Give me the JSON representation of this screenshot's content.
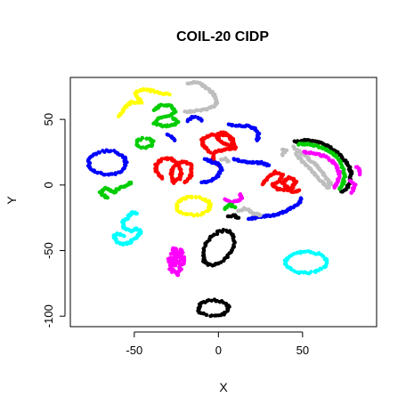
{
  "chart_data": {
    "type": "scatter",
    "title": "COIL-20 CIDP",
    "xlabel": "X",
    "ylabel": "Y",
    "xlim": [
      -88,
      94
    ],
    "ylim": [
      -108,
      82
    ],
    "xticks": [
      -50,
      0,
      50
    ],
    "yticks": [
      -100,
      -50,
      0,
      50
    ],
    "xtick_labels": [
      "-50",
      "0",
      "50"
    ],
    "ytick_labels": [
      "-100",
      "-50",
      "0",
      "50"
    ],
    "grid": false,
    "legend": "none",
    "clusters": [
      {
        "color": "#0000FF",
        "shape": "ring",
        "center": [
          -66,
          17
        ],
        "radii": [
          11,
          9
        ],
        "tilt": 0
      },
      {
        "color": "#FFFF00",
        "shape": "path",
        "points": [
          [
            -59,
            52
          ],
          [
            -56,
            59
          ],
          [
            -52,
            63
          ],
          [
            -46,
            63
          ],
          [
            -50,
            70
          ],
          [
            -45,
            73
          ],
          [
            -40,
            72
          ],
          [
            -34,
            70
          ],
          [
            -29,
            69
          ]
        ]
      },
      {
        "color": "#BEBEBE",
        "shape": "path",
        "points": [
          [
            -18,
            77
          ],
          [
            -14,
            79
          ],
          [
            -10,
            77
          ],
          [
            -7,
            74
          ],
          [
            -4,
            71
          ],
          [
            -2,
            67
          ],
          [
            -1,
            62
          ],
          [
            -3,
            60
          ],
          [
            -7,
            58
          ],
          [
            -11,
            57
          ],
          [
            -16,
            56
          ],
          [
            -20,
            56
          ]
        ]
      },
      {
        "color": "#00CD00",
        "shape": "path",
        "points": [
          [
            -38,
            57
          ],
          [
            -34,
            61
          ],
          [
            -29,
            61
          ],
          [
            -26,
            56
          ],
          [
            -29,
            53
          ],
          [
            -35,
            51
          ],
          [
            -38,
            47
          ],
          [
            -34,
            45
          ],
          [
            -28,
            45
          ],
          [
            -24,
            48
          ],
          [
            -27,
            51
          ]
        ]
      },
      {
        "color": "#0000FF",
        "shape": "path",
        "points": [
          [
            -18,
            49
          ],
          [
            -15,
            52
          ],
          [
            -12,
            51
          ],
          [
            -10,
            49
          ]
        ]
      },
      {
        "color": "#0000FF",
        "shape": "path",
        "points": [
          [
            -30,
            38
          ],
          [
            -28,
            37
          ],
          [
            -26,
            34
          ]
        ]
      },
      {
        "color": "#00CD00",
        "shape": "ring",
        "center": [
          -44,
          32
        ],
        "radii": [
          5,
          3.5
        ],
        "tilt": 0
      },
      {
        "color": "#0000FF",
        "shape": "path",
        "points": [
          [
            6,
            46
          ],
          [
            12,
            45
          ],
          [
            18,
            45
          ],
          [
            22,
            43
          ],
          [
            24,
            39
          ],
          [
            23,
            34
          ]
        ]
      },
      {
        "color": "#FF0000",
        "shape": "path",
        "points": [
          [
            -33,
            5
          ],
          [
            -37,
            10
          ],
          [
            -37,
            16
          ],
          [
            -33,
            20
          ],
          [
            -28,
            20
          ],
          [
            -24,
            16
          ],
          [
            -22,
            10
          ],
          [
            -23,
            5
          ],
          [
            -27,
            2
          ],
          [
            -28,
            10
          ],
          [
            -26,
            15
          ],
          [
            -20,
            18
          ],
          [
            -16,
            15
          ],
          [
            -16,
            8
          ],
          [
            -18,
            4
          ],
          [
            -20,
            2
          ]
        ]
      },
      {
        "color": "#FF0000",
        "shape": "path",
        "points": [
          [
            -5,
            25
          ],
          [
            -9,
            30
          ],
          [
            -10,
            35
          ],
          [
            -5,
            38
          ],
          [
            0,
            39
          ],
          [
            5,
            38
          ],
          [
            9,
            34
          ],
          [
            7,
            30
          ],
          [
            2,
            32
          ],
          [
            -1,
            36
          ],
          [
            2,
            40
          ],
          [
            6,
            38
          ],
          [
            9,
            32
          ],
          [
            10,
            28
          ],
          [
            5,
            27
          ],
          [
            0,
            26
          ],
          [
            -3,
            24
          ],
          [
            -3,
            18
          ],
          [
            0,
            15
          ]
        ]
      },
      {
        "color": "#BEBEBE",
        "shape": "path",
        "points": [
          [
            2,
            19
          ],
          [
            4,
            20
          ],
          [
            6,
            18
          ]
        ]
      },
      {
        "color": "#0000FF",
        "shape": "path",
        "points": [
          [
            -8,
            20
          ],
          [
            -5,
            18
          ],
          [
            0,
            16
          ],
          [
            2,
            12
          ],
          [
            0,
            7
          ],
          [
            -5,
            3
          ],
          [
            -10,
            2
          ]
        ]
      },
      {
        "color": "#0000FF",
        "shape": "path",
        "points": [
          [
            9,
            20
          ],
          [
            14,
            18
          ],
          [
            20,
            17
          ],
          [
            26,
            17
          ],
          [
            30,
            15
          ]
        ]
      },
      {
        "color": "#00CD00",
        "shape": "path",
        "points": [
          [
            -66,
            -10
          ],
          [
            -70,
            -6
          ],
          [
            -67,
            -2
          ],
          [
            -62,
            -6
          ],
          [
            -60,
            -3
          ],
          [
            -56,
            -1
          ],
          [
            -52,
            2
          ]
        ]
      },
      {
        "color": "#FFFF00",
        "shape": "ring",
        "center": [
          -15,
          -16
        ],
        "radii": [
          10,
          7
        ],
        "tilt": 0
      },
      {
        "color": "#0000FF",
        "shape": "path",
        "points": [
          [
            18,
            -26
          ],
          [
            26,
            -24
          ],
          [
            34,
            -23
          ],
          [
            40,
            -20
          ],
          [
            44,
            -17
          ],
          [
            48,
            -14
          ],
          [
            49,
            -10
          ]
        ]
      },
      {
        "color": "#FF0000",
        "shape": "path",
        "points": [
          [
            26,
            1
          ],
          [
            30,
            6
          ],
          [
            34,
            10
          ],
          [
            38,
            8
          ],
          [
            36,
            3
          ],
          [
            32,
            0
          ],
          [
            35,
            -3
          ],
          [
            40,
            -4
          ],
          [
            44,
            -2
          ],
          [
            46,
            3
          ],
          [
            42,
            6
          ],
          [
            38,
            2
          ],
          [
            44,
            -6
          ],
          [
            48,
            -4
          ]
        ]
      },
      {
        "color": "#BEBEBE",
        "shape": "path",
        "points": [
          [
            38,
            23
          ],
          [
            40,
            26
          ],
          [
            38,
            27
          ]
        ]
      },
      {
        "color": "#FF00FF",
        "shape": "path",
        "points": [
          [
            4,
            -11
          ],
          [
            8,
            -13
          ],
          [
            12,
            -12
          ],
          [
            14,
            -9
          ],
          [
            13,
            -7
          ]
        ]
      },
      {
        "color": "#BEBEBE",
        "shape": "path",
        "points": [
          [
            12,
            -20
          ],
          [
            15,
            -18
          ],
          [
            18,
            -19
          ],
          [
            21,
            -22
          ],
          [
            25,
            -23
          ]
        ]
      },
      {
        "color": "#00CD00",
        "shape": "path",
        "points": [
          [
            4,
            -18
          ],
          [
            7,
            -15
          ],
          [
            10,
            -17
          ]
        ]
      },
      {
        "color": "#000000",
        "shape": "path",
        "points": [
          [
            6,
            -24
          ],
          [
            9,
            -23
          ],
          [
            12,
            -25
          ]
        ]
      },
      {
        "color": "#BEBEBE",
        "shape": "path",
        "points": [
          [
            44,
            29
          ],
          [
            52,
            22
          ],
          [
            59,
            14
          ],
          [
            64,
            6
          ],
          [
            67,
            0
          ],
          [
            65,
            -2
          ],
          [
            60,
            4
          ],
          [
            55,
            12
          ],
          [
            50,
            18
          ],
          [
            46,
            24
          ]
        ]
      },
      {
        "color": "#000000",
        "shape": "path",
        "points": [
          [
            45,
            33
          ],
          [
            52,
            34
          ],
          [
            59,
            33
          ],
          [
            66,
            29
          ],
          [
            72,
            23
          ],
          [
            77,
            16
          ],
          [
            79,
            9
          ],
          [
            78,
            2
          ],
          [
            76,
            -3
          ],
          [
            73,
            -5
          ]
        ]
      },
      {
        "color": "#00CD00",
        "shape": "path",
        "points": [
          [
            47,
            31
          ],
          [
            54,
            31
          ],
          [
            61,
            29
          ],
          [
            67,
            25
          ],
          [
            72,
            19
          ],
          [
            74,
            13
          ],
          [
            75,
            7
          ],
          [
            74,
            1
          ],
          [
            72,
            -3
          ]
        ]
      },
      {
        "color": "#FF00FF",
        "shape": "path",
        "points": [
          [
            51,
            25
          ],
          [
            58,
            24
          ],
          [
            65,
            21
          ],
          [
            70,
            15
          ],
          [
            72,
            9
          ],
          [
            71,
            3
          ],
          [
            69,
            -2
          ]
        ]
      },
      {
        "color": "#FF00FF",
        "shape": "path",
        "points": [
          [
            82,
            14
          ],
          [
            84,
            11
          ],
          [
            84,
            8
          ]
        ]
      },
      {
        "color": "#FF00FF",
        "shape": "path",
        "points": [
          [
            78,
            3
          ],
          [
            81,
            0
          ],
          [
            79,
            -6
          ]
        ]
      },
      {
        "color": "#00FFFF",
        "shape": "path",
        "points": [
          [
            -48,
            -22
          ],
          [
            -51,
            -21
          ],
          [
            -54,
            -25
          ],
          [
            -57,
            -28
          ],
          [
            -56,
            -33
          ],
          [
            -52,
            -35
          ],
          [
            -48,
            -33
          ],
          [
            -46,
            -36
          ],
          [
            -49,
            -40
          ],
          [
            -53,
            -44
          ],
          [
            -57,
            -45
          ],
          [
            -61,
            -43
          ],
          [
            -62,
            -39
          ],
          [
            -60,
            -37
          ],
          [
            -56,
            -39
          ]
        ]
      },
      {
        "color": "#000000",
        "shape": "ring",
        "center": [
          0,
          -48
        ],
        "radii": [
          8,
          14
        ],
        "tilt": -25
      },
      {
        "color": "#FF00FF",
        "shape": "blob",
        "center": [
          -25,
          -58
        ],
        "radii": [
          5,
          11
        ]
      },
      {
        "color": "#00FFFF",
        "shape": "ring",
        "center": [
          52,
          -59
        ],
        "radii": [
          12,
          8
        ],
        "tilt": 0
      },
      {
        "color": "#000000",
        "shape": "ring",
        "center": [
          -3,
          -94
        ],
        "radii": [
          9,
          6
        ],
        "tilt": 0
      }
    ]
  }
}
